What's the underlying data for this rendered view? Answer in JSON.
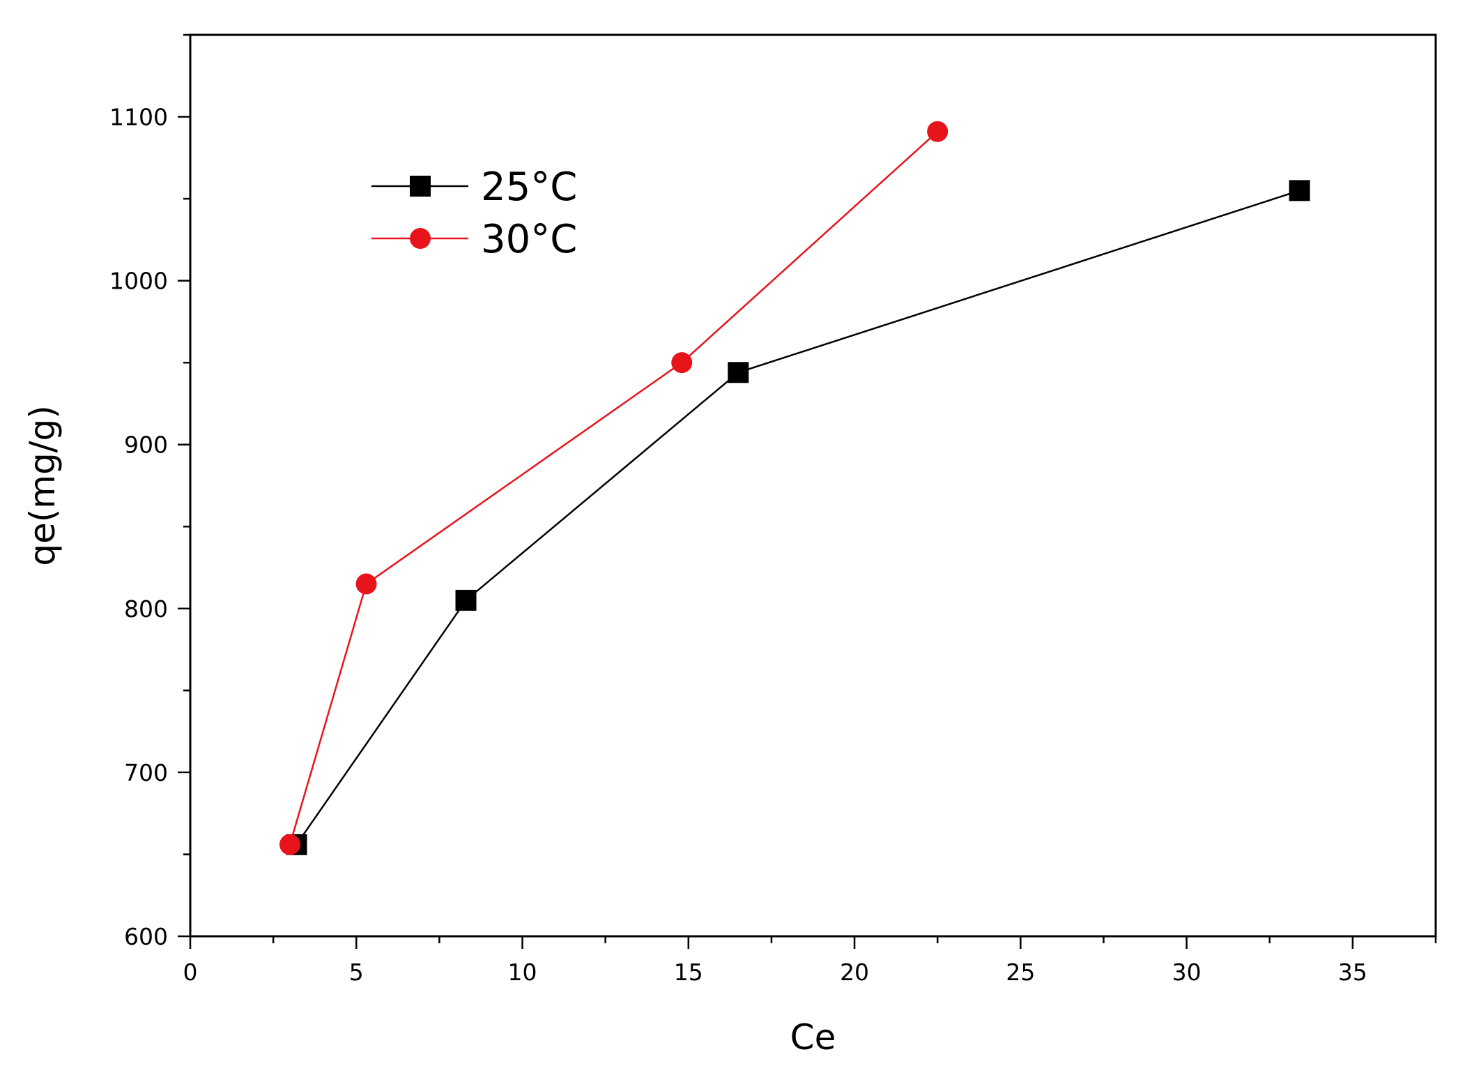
{
  "chart_data": {
    "type": "line",
    "title": "",
    "xlabel": "Ce",
    "ylabel": "qe(mg/g)",
    "xlim": [
      0,
      37.5
    ],
    "ylim": [
      600,
      1150
    ],
    "x_ticks": [
      0,
      5,
      10,
      15,
      20,
      25,
      30,
      35
    ],
    "y_ticks": [
      600,
      700,
      800,
      900,
      1000,
      1100
    ],
    "grid": false,
    "legend": "top-left",
    "series": [
      {
        "name": "25°C",
        "color": "#000000",
        "marker": "square",
        "x": [
          3.2,
          8.3,
          16.5,
          33.4
        ],
        "y": [
          656,
          805,
          944,
          1055
        ]
      },
      {
        "name": "30°C",
        "color": "#e8141c",
        "marker": "circle",
        "x": [
          3.0,
          5.3,
          14.8,
          22.5
        ],
        "y": [
          656,
          815,
          950,
          1091
        ]
      }
    ]
  }
}
